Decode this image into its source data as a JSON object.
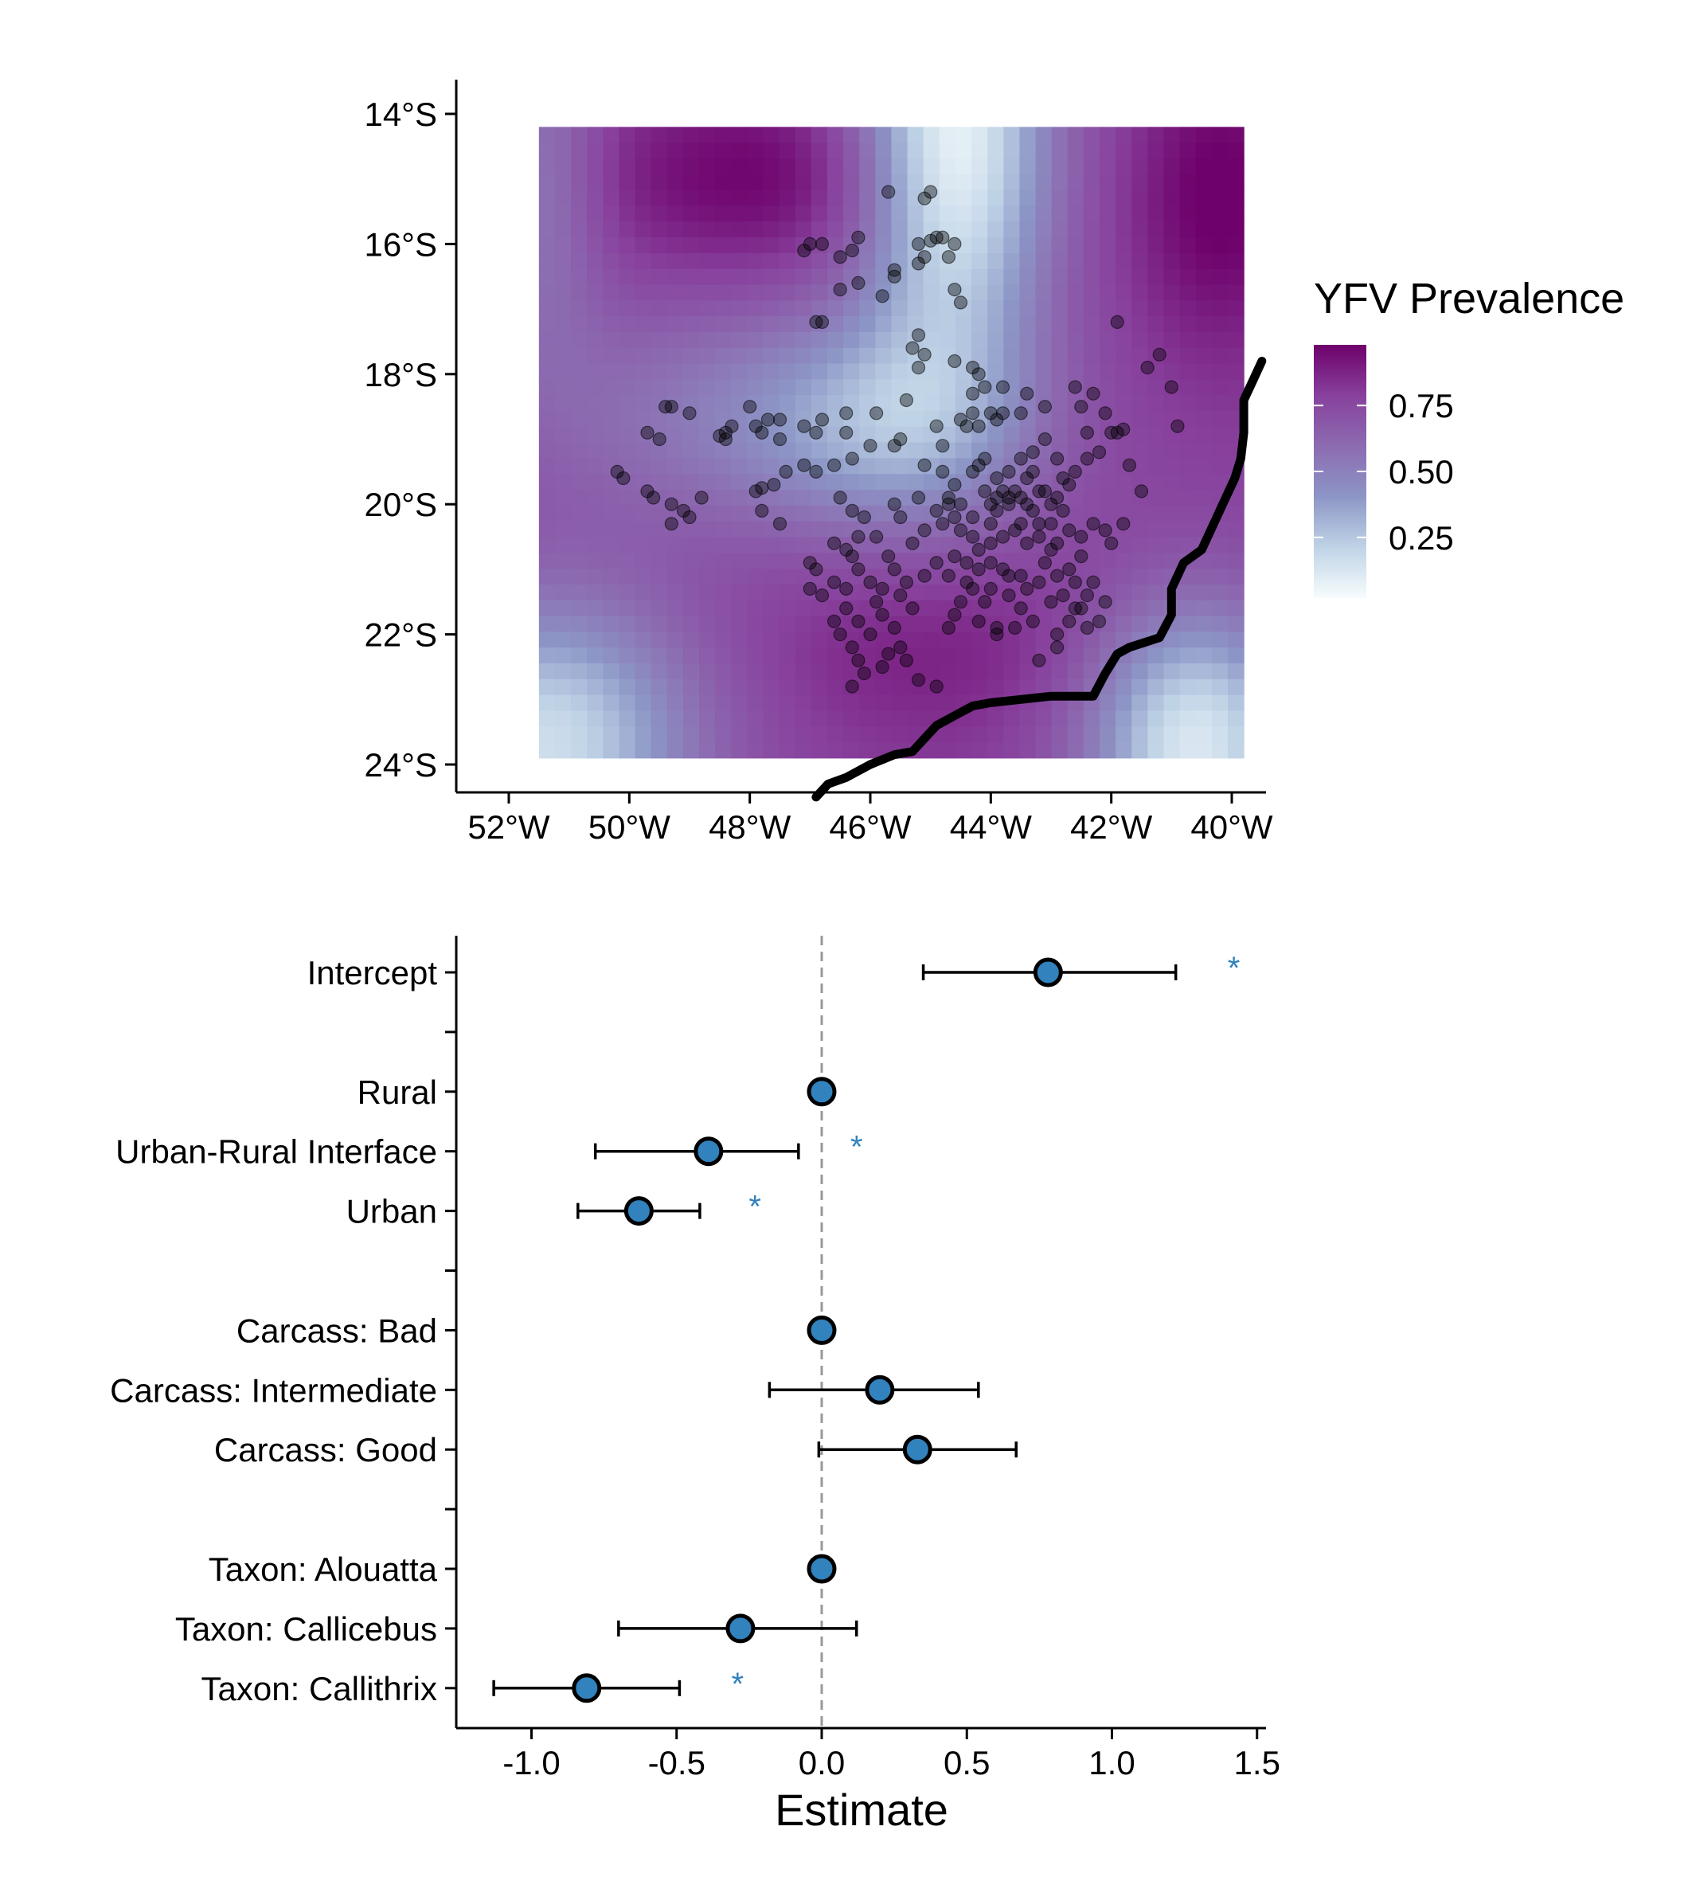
{
  "chart_data": [
    {
      "type": "heatmap",
      "subtype": "map with sampling points",
      "xlabel": "",
      "ylabel": "",
      "x_ticks": [
        "52°W",
        "50°W",
        "48°W",
        "46°W",
        "44°W",
        "42°W",
        "40°W"
      ],
      "x_tick_values": [
        -52,
        -50,
        -48,
        -46,
        -44,
        -42,
        -40
      ],
      "y_ticks": [
        "14°S",
        "16°S",
        "18°S",
        "20°S",
        "22°S",
        "24°S"
      ],
      "y_tick_values": [
        -14,
        -16,
        -18,
        -20,
        -22,
        -24
      ],
      "xlim": [
        -53.0,
        -39.5
      ],
      "ylim": [
        -24.5,
        -13.5
      ],
      "raster_extent": {
        "lon": [
          -51.5,
          -39.8
        ],
        "lat": [
          -23.9,
          -14.2
        ]
      },
      "legend": {
        "title": "YFV Prevalence",
        "labels": [
          "0.75",
          "0.50",
          "0.25"
        ],
        "label_values": [
          0.75,
          0.5,
          0.25
        ],
        "range": [
          0.02,
          0.98
        ],
        "colors": [
          "#f7fcfd",
          "#bfd3e6",
          "#8c96c6",
          "#8c6bb1",
          "#88419d",
          "#6e016b"
        ],
        "placement": "right"
      },
      "point_color": "#000000",
      "point_opacity": 0.4,
      "coastline_color": "#000000",
      "coastline": [
        [
          -46.9,
          -24.5
        ],
        [
          -46.7,
          -24.3
        ],
        [
          -46.4,
          -24.2
        ],
        [
          -46.0,
          -24.0
        ],
        [
          -45.6,
          -23.85
        ],
        [
          -45.3,
          -23.8
        ],
        [
          -45.1,
          -23.6
        ],
        [
          -44.9,
          -23.4
        ],
        [
          -44.6,
          -23.25
        ],
        [
          -44.3,
          -23.1
        ],
        [
          -44.0,
          -23.05
        ],
        [
          -43.5,
          -23.0
        ],
        [
          -43.0,
          -22.95
        ],
        [
          -42.6,
          -22.95
        ],
        [
          -42.3,
          -22.95
        ],
        [
          -42.1,
          -22.6
        ],
        [
          -41.9,
          -22.3
        ],
        [
          -41.7,
          -22.2
        ],
        [
          -41.2,
          -22.05
        ],
        [
          -41.0,
          -21.7
        ],
        [
          -41.0,
          -21.3
        ],
        [
          -40.8,
          -20.9
        ],
        [
          -40.5,
          -20.7
        ],
        [
          -40.3,
          -20.3
        ],
        [
          -40.1,
          -19.9
        ],
        [
          -39.95,
          -19.6
        ],
        [
          -39.85,
          -19.3
        ],
        [
          -39.8,
          -18.9
        ],
        [
          -39.8,
          -18.4
        ],
        [
          -39.65,
          -18.1
        ],
        [
          -39.5,
          -17.8
        ]
      ],
      "points": [
        [
          -45.0,
          -15.2
        ],
        [
          -45.1,
          -15.3
        ],
        [
          -44.9,
          -15.9
        ],
        [
          -45.0,
          -15.95
        ],
        [
          -44.8,
          -15.9
        ],
        [
          -45.2,
          -16.0
        ],
        [
          -45.1,
          -16.2
        ],
        [
          -44.7,
          -16.2
        ],
        [
          -44.6,
          -16.0
        ],
        [
          -46.2,
          -15.9
        ],
        [
          -46.3,
          -16.1
        ],
        [
          -46.5,
          -16.2
        ],
        [
          -46.8,
          -16.0
        ],
        [
          -47.1,
          -16.1
        ],
        [
          -47.0,
          -16.0
        ],
        [
          -46.5,
          -16.7
        ],
        [
          -46.2,
          -16.6
        ],
        [
          -45.6,
          -16.5
        ],
        [
          -45.8,
          -16.8
        ],
        [
          -45.2,
          -16.3
        ],
        [
          -46.9,
          -17.2
        ],
        [
          -46.8,
          -17.2
        ],
        [
          -45.3,
          -17.6
        ],
        [
          -45.2,
          -17.4
        ],
        [
          -45.1,
          -17.7
        ],
        [
          -45.2,
          -17.9
        ],
        [
          -44.6,
          -17.8
        ],
        [
          -44.3,
          -17.9
        ],
        [
          -44.2,
          -18.0
        ],
        [
          -44.1,
          -18.2
        ],
        [
          -44.3,
          -18.3
        ],
        [
          -43.8,
          -18.2
        ],
        [
          -43.4,
          -18.3
        ],
        [
          -43.1,
          -18.5
        ],
        [
          -43.5,
          -18.6
        ],
        [
          -44.3,
          -18.6
        ],
        [
          -44.5,
          -18.7
        ],
        [
          -44.4,
          -18.8
        ],
        [
          -44.0,
          -18.6
        ],
        [
          -43.9,
          -18.7
        ],
        [
          -43.8,
          -18.6
        ],
        [
          -44.2,
          -18.8
        ],
        [
          -44.9,
          -18.8
        ],
        [
          -45.4,
          -18.4
        ],
        [
          -45.9,
          -18.6
        ],
        [
          -46.4,
          -18.6
        ],
        [
          -46.8,
          -18.7
        ],
        [
          -46.4,
          -18.9
        ],
        [
          -46.9,
          -18.9
        ],
        [
          -47.1,
          -18.8
        ],
        [
          -47.5,
          -18.7
        ],
        [
          -47.7,
          -18.7
        ],
        [
          -47.9,
          -18.8
        ],
        [
          -47.8,
          -18.9
        ],
        [
          -47.5,
          -19.0
        ],
        [
          -48.0,
          -18.5
        ],
        [
          -48.3,
          -18.8
        ],
        [
          -48.4,
          -18.9
        ],
        [
          -48.5,
          -18.95
        ],
        [
          -48.4,
          -19.0
        ],
        [
          -49.0,
          -18.6
        ],
        [
          -49.3,
          -18.5
        ],
        [
          -49.4,
          -18.5
        ],
        [
          -49.5,
          -19.0
        ],
        [
          -49.7,
          -18.9
        ],
        [
          -50.2,
          -19.5
        ],
        [
          -50.1,
          -19.6
        ],
        [
          -49.7,
          -19.8
        ],
        [
          -49.6,
          -19.9
        ],
        [
          -49.3,
          -20.0
        ],
        [
          -49.1,
          -20.1
        ],
        [
          -49.3,
          -20.3
        ],
        [
          -49.0,
          -20.2
        ],
        [
          -48.8,
          -19.9
        ],
        [
          -47.9,
          -19.8
        ],
        [
          -47.8,
          -19.75
        ],
        [
          -47.6,
          -19.7
        ],
        [
          -47.4,
          -19.5
        ],
        [
          -47.1,
          -19.4
        ],
        [
          -46.9,
          -19.5
        ],
        [
          -46.6,
          -19.4
        ],
        [
          -46.3,
          -19.3
        ],
        [
          -46.0,
          -19.1
        ],
        [
          -45.6,
          -19.1
        ],
        [
          -45.1,
          -19.4
        ],
        [
          -44.8,
          -19.5
        ],
        [
          -44.6,
          -19.7
        ],
        [
          -44.3,
          -19.5
        ],
        [
          -44.2,
          -19.4
        ],
        [
          -44.1,
          -19.3
        ],
        [
          -43.9,
          -19.6
        ],
        [
          -43.8,
          -19.8
        ],
        [
          -43.9,
          -19.9
        ],
        [
          -43.7,
          -19.9
        ],
        [
          -44.0,
          -20.0
        ],
        [
          -43.9,
          -20.1
        ],
        [
          -43.7,
          -20.0
        ],
        [
          -43.6,
          -19.8
        ],
        [
          -43.5,
          -19.9
        ],
        [
          -43.4,
          -20.0
        ],
        [
          -43.2,
          -19.8
        ],
        [
          -43.3,
          -20.1
        ],
        [
          -43.1,
          -19.8
        ],
        [
          -42.9,
          -19.9
        ],
        [
          -42.7,
          -19.7
        ],
        [
          -42.6,
          -19.5
        ],
        [
          -42.4,
          -19.3
        ],
        [
          -42.2,
          -19.2
        ],
        [
          -42.9,
          -19.3
        ],
        [
          -43.1,
          -19.0
        ],
        [
          -43.3,
          -19.2
        ],
        [
          -43.5,
          -19.3
        ],
        [
          -42.5,
          -18.5
        ],
        [
          -42.6,
          -18.2
        ],
        [
          -42.3,
          -18.3
        ],
        [
          -42.1,
          -18.6
        ],
        [
          -41.9,
          -18.9
        ],
        [
          -42.0,
          -18.9
        ],
        [
          -41.8,
          -18.85
        ],
        [
          -41.4,
          -17.9
        ],
        [
          -41.2,
          -17.7
        ],
        [
          -41.0,
          -18.2
        ],
        [
          -40.9,
          -18.8
        ],
        [
          -41.9,
          -17.2
        ],
        [
          -44.6,
          -20.2
        ],
        [
          -44.8,
          -20.3
        ],
        [
          -44.5,
          -20.4
        ],
        [
          -44.3,
          -20.5
        ],
        [
          -44.0,
          -20.3
        ],
        [
          -43.6,
          -20.4
        ],
        [
          -43.8,
          -20.5
        ],
        [
          -43.4,
          -20.6
        ],
        [
          -43.2,
          -20.5
        ],
        [
          -43.0,
          -20.3
        ],
        [
          -42.7,
          -20.4
        ],
        [
          -42.5,
          -20.5
        ],
        [
          -42.3,
          -20.3
        ],
        [
          -42.1,
          -20.4
        ],
        [
          -42.0,
          -20.6
        ],
        [
          -43.0,
          -20.7
        ],
        [
          -43.1,
          -20.9
        ],
        [
          -42.9,
          -21.1
        ],
        [
          -42.6,
          -21.2
        ],
        [
          -42.8,
          -21.4
        ],
        [
          -43.0,
          -21.5
        ],
        [
          -43.2,
          -21.2
        ],
        [
          -43.5,
          -21.1
        ],
        [
          -43.8,
          -21.0
        ],
        [
          -44.0,
          -20.9
        ],
        [
          -44.2,
          -21.0
        ],
        [
          -44.4,
          -21.2
        ],
        [
          -44.0,
          -21.3
        ],
        [
          -43.7,
          -21.4
        ],
        [
          -43.5,
          -21.6
        ],
        [
          -43.3,
          -21.8
        ],
        [
          -43.6,
          -21.9
        ],
        [
          -43.9,
          -21.9
        ],
        [
          -44.2,
          -21.8
        ],
        [
          -44.5,
          -21.5
        ],
        [
          -44.6,
          -21.7
        ],
        [
          -44.3,
          -21.3
        ],
        [
          -44.7,
          -21.1
        ],
        [
          -44.6,
          -20.8
        ],
        [
          -44.9,
          -20.9
        ],
        [
          -45.1,
          -21.1
        ],
        [
          -45.4,
          -21.2
        ],
        [
          -45.5,
          -21.4
        ],
        [
          -45.8,
          -21.3
        ],
        [
          -46.0,
          -21.2
        ],
        [
          -46.2,
          -21.0
        ],
        [
          -46.3,
          -20.8
        ],
        [
          -46.4,
          -21.3
        ],
        [
          -46.6,
          -21.2
        ],
        [
          -46.8,
          -21.4
        ],
        [
          -47.0,
          -21.3
        ],
        [
          -46.9,
          -21.0
        ],
        [
          -47.0,
          -20.9
        ],
        [
          -46.6,
          -20.6
        ],
        [
          -46.2,
          -20.5
        ],
        [
          -45.9,
          -20.5
        ],
        [
          -45.7,
          -20.8
        ],
        [
          -45.6,
          -21.0
        ],
        [
          -45.3,
          -20.6
        ],
        [
          -45.1,
          -20.4
        ],
        [
          -44.9,
          -20.1
        ],
        [
          -44.7,
          -20.0
        ],
        [
          -45.6,
          -20.0
        ],
        [
          -45.5,
          -20.2
        ],
        [
          -46.1,
          -20.2
        ],
        [
          -46.5,
          -19.9
        ],
        [
          -46.3,
          -20.1
        ],
        [
          -47.5,
          -20.3
        ],
        [
          -47.8,
          -20.1
        ],
        [
          -46.2,
          -21.8
        ],
        [
          -46.0,
          -22.0
        ],
        [
          -46.3,
          -22.2
        ],
        [
          -46.5,
          -22.0
        ],
        [
          -45.8,
          -21.7
        ],
        [
          -45.6,
          -21.9
        ],
        [
          -45.5,
          -22.2
        ],
        [
          -45.7,
          -22.3
        ],
        [
          -46.1,
          -22.6
        ],
        [
          -46.3,
          -22.8
        ],
        [
          -46.2,
          -22.4
        ],
        [
          -45.8,
          -22.5
        ],
        [
          -45.4,
          -22.4
        ],
        [
          -45.2,
          -22.7
        ],
        [
          -44.9,
          -22.8
        ],
        [
          -44.7,
          -21.9
        ],
        [
          -43.9,
          -22.0
        ],
        [
          -42.9,
          -22.0
        ],
        [
          -42.7,
          -21.8
        ],
        [
          -42.5,
          -21.6
        ],
        [
          -42.4,
          -21.4
        ],
        [
          -42.3,
          -21.2
        ],
        [
          -42.1,
          -21.5
        ],
        [
          -42.2,
          -21.8
        ],
        [
          -41.8,
          -20.3
        ],
        [
          -41.5,
          -19.8
        ],
        [
          -41.7,
          -19.4
        ],
        [
          -44.5,
          -16.9
        ],
        [
          -44.6,
          -16.7
        ],
        [
          -45.6,
          -16.4
        ],
        [
          -45.7,
          -15.2
        ],
        [
          -45.5,
          -19.0
        ],
        [
          -44.8,
          -19.1
        ],
        [
          -42.4,
          -18.9
        ],
        [
          -44.2,
          -20.7
        ],
        [
          -43.4,
          -19.6
        ],
        [
          -43.2,
          -20.3
        ],
        [
          -42.9,
          -20.6
        ],
        [
          -42.7,
          -21.0
        ],
        [
          -43.7,
          -21.1
        ],
        [
          -44.4,
          -20.9
        ],
        [
          -44.1,
          -21.5
        ],
        [
          -43.4,
          -21.3
        ],
        [
          -42.6,
          -21.6
        ],
        [
          -45.3,
          -21.6
        ],
        [
          -45.9,
          -21.5
        ],
        [
          -46.4,
          -21.6
        ],
        [
          -46.6,
          -21.8
        ],
        [
          -46.4,
          -20.7
        ],
        [
          -43.2,
          -22.4
        ],
        [
          -42.9,
          -22.2
        ],
        [
          -42.4,
          -21.9
        ],
        [
          -42.8,
          -20.1
        ],
        [
          -42.5,
          -20.8
        ],
        [
          -43.5,
          -20.3
        ],
        [
          -44.0,
          -20.6
        ],
        [
          -44.5,
          -20.0
        ],
        [
          -44.1,
          -19.8
        ],
        [
          -43.7,
          -19.5
        ],
        [
          -43.3,
          -19.5
        ],
        [
          -42.8,
          -19.6
        ],
        [
          -44.7,
          -19.9
        ],
        [
          -45.2,
          -19.9
        ],
        [
          -43.0,
          -20.0
        ],
        [
          -44.3,
          -20.2
        ]
      ]
    },
    {
      "type": "scatter",
      "subtype": "coefficient plot with error bars",
      "xlabel": "Estimate",
      "ylabel": "",
      "xlim": [
        -1.27,
        1.55
      ],
      "x_ticks": [
        "-1.0",
        "-0.5",
        "0.0",
        "0.5",
        "1.0",
        "1.5"
      ],
      "x_tick_values": [
        -1.0,
        -0.5,
        0.0,
        0.5,
        1.0,
        1.5
      ],
      "reference_line": 0.0,
      "point_color": "#3182bd",
      "star_color": "#3182bd",
      "star_label": "*",
      "significance_marker_x": [
        1.42,
        0.12,
        -0.23,
        -0.29
      ],
      "categories": [
        "Intercept",
        "",
        "Rural",
        "Urban-Rural Interface",
        "Urban",
        "",
        "Carcass: Bad",
        "Carcass: Intermediate",
        "Carcass: Good",
        "",
        "Taxon: Alouatta",
        "Taxon: Callicebus",
        "Taxon: Callithrix"
      ],
      "estimates": [
        0.78,
        null,
        0.0,
        -0.39,
        -0.63,
        null,
        0.0,
        0.2,
        0.33,
        null,
        0.0,
        -0.28,
        -0.81
      ],
      "ci_low": [
        0.35,
        null,
        0.0,
        -0.78,
        -0.84,
        null,
        0.0,
        -0.18,
        -0.01,
        null,
        0.0,
        -0.7,
        -1.13
      ],
      "ci_high": [
        1.22,
        null,
        0.0,
        -0.08,
        -0.42,
        null,
        0.0,
        0.54,
        0.67,
        null,
        0.0,
        0.12,
        -0.49
      ],
      "significant": [
        true,
        false,
        false,
        true,
        true,
        false,
        false,
        false,
        false,
        false,
        false,
        false,
        true
      ]
    }
  ]
}
